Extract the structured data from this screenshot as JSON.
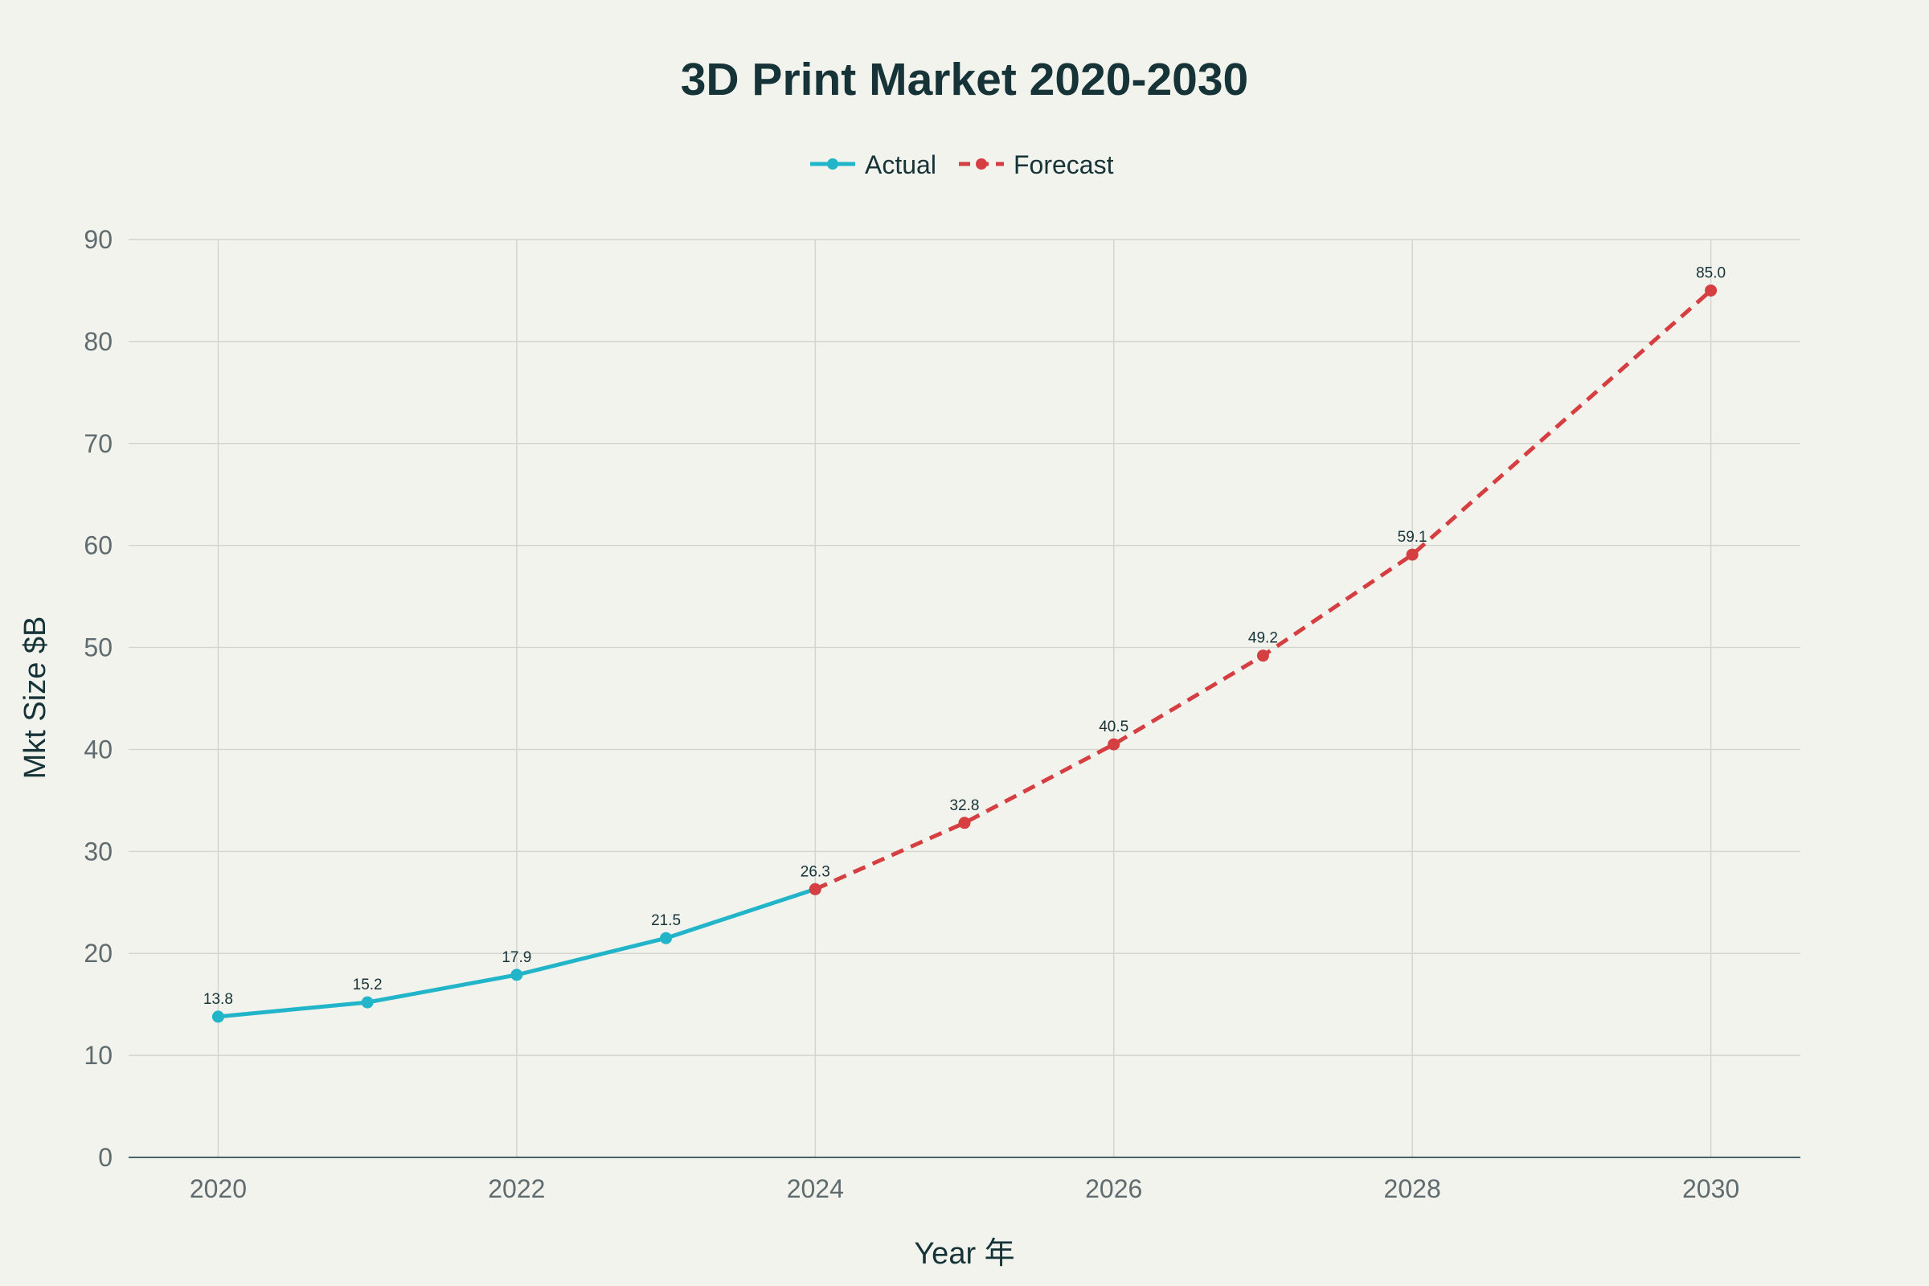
{
  "chart_data": {
    "type": "line",
    "title": "3D Print Market 2020-2030",
    "xlabel": "Year 年",
    "ylabel": "Mkt Size $B",
    "xlim": [
      2019.4,
      2030.6
    ],
    "ylim": [
      0,
      90
    ],
    "x_ticks": [
      2020,
      2022,
      2024,
      2026,
      2028,
      2030
    ],
    "y_ticks": [
      0,
      10,
      20,
      30,
      40,
      50,
      60,
      70,
      80,
      90
    ],
    "grid": true,
    "legend_position": "top-center",
    "series": [
      {
        "name": "Actual",
        "color": "#22b5c9",
        "dash": "solid",
        "x": [
          2020,
          2021,
          2022,
          2023,
          2024
        ],
        "values": [
          13.8,
          15.2,
          17.9,
          21.5,
          26.3
        ],
        "labels": [
          "13.8",
          "15.2",
          "17.9",
          "21.5",
          "26.3"
        ]
      },
      {
        "name": "Forecast",
        "color": "#d63f42",
        "dash": "dashed",
        "x": [
          2024,
          2025,
          2026,
          2027,
          2028,
          2030
        ],
        "values": [
          26.3,
          32.8,
          40.5,
          49.2,
          59.1,
          85.0
        ],
        "labels": [
          "",
          "32.8",
          "40.5",
          "49.2",
          "59.1",
          "85.0"
        ]
      }
    ]
  }
}
